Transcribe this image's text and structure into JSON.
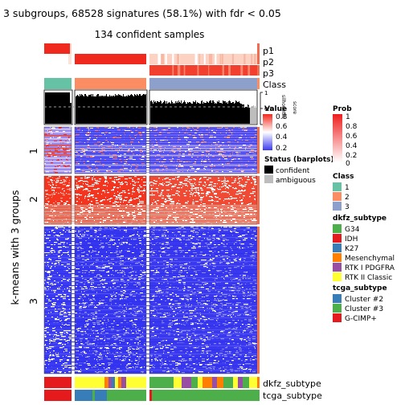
{
  "chart_data": {
    "type": "heatmap",
    "title": "3 subgroups, 68528 signatures (58.1%) with fdr < 0.05",
    "subtitle": "134 confident samples",
    "ylabel": "k-means with 3 groups",
    "row_groups": [
      "1",
      "2",
      "3"
    ],
    "column_groups": [
      "1",
      "2",
      "3"
    ],
    "top_annotations": [
      "p1",
      "p2",
      "p3",
      "Class"
    ],
    "barplot": {
      "label_lines": [
        "silhouette",
        "score"
      ],
      "ticks": [
        "1",
        "0.5",
        "0"
      ]
    },
    "bottom_annotations": [
      "dkfz_subtype",
      "tcga_subtype"
    ],
    "legends": {
      "value": {
        "title": "Value",
        "ticks": [
          "0.8",
          "0.6",
          "0.4",
          "0.2"
        ],
        "colors": [
          "#f4271a",
          "#ffffff",
          "#3b3bf0"
        ]
      },
      "prob": {
        "title": "Prob",
        "ticks": [
          "1",
          "0.8",
          "0.6",
          "0.4",
          "0.2",
          "0"
        ],
        "colors": [
          "#ee1d1d",
          "#ffffff"
        ]
      },
      "status": {
        "title": "Status (barplots)",
        "entries": [
          {
            "label": "confident",
            "color": "#000000"
          },
          {
            "label": "ambiguous",
            "color": "#bdbdbd"
          }
        ]
      },
      "class": {
        "title": "Class",
        "entries": [
          {
            "label": "1",
            "color": "#66c2a5"
          },
          {
            "label": "2",
            "color": "#fc8d62"
          },
          {
            "label": "3",
            "color": "#8da0cb"
          }
        ]
      },
      "dkfz_subtype": {
        "title": "dkfz_subtype",
        "entries": [
          {
            "label": "G34",
            "color": "#4daf4a"
          },
          {
            "label": "IDH",
            "color": "#e41a1c"
          },
          {
            "label": "K27",
            "color": "#377eb8"
          },
          {
            "label": "Mesenchymal",
            "color": "#ff7f00"
          },
          {
            "label": "RTK I PDGFRA",
            "color": "#984ea3"
          },
          {
            "label": "RTK II Classic",
            "color": "#ffff33"
          }
        ]
      },
      "tcga_subtype": {
        "title": "tcga_subtype",
        "entries": [
          {
            "label": "Cluster #2",
            "color": "#377eb8"
          },
          {
            "label": "Cluster #3",
            "color": "#4daf4a"
          },
          {
            "label": "G-CIMP+",
            "color": "#e41a1c"
          }
        ]
      }
    }
  }
}
